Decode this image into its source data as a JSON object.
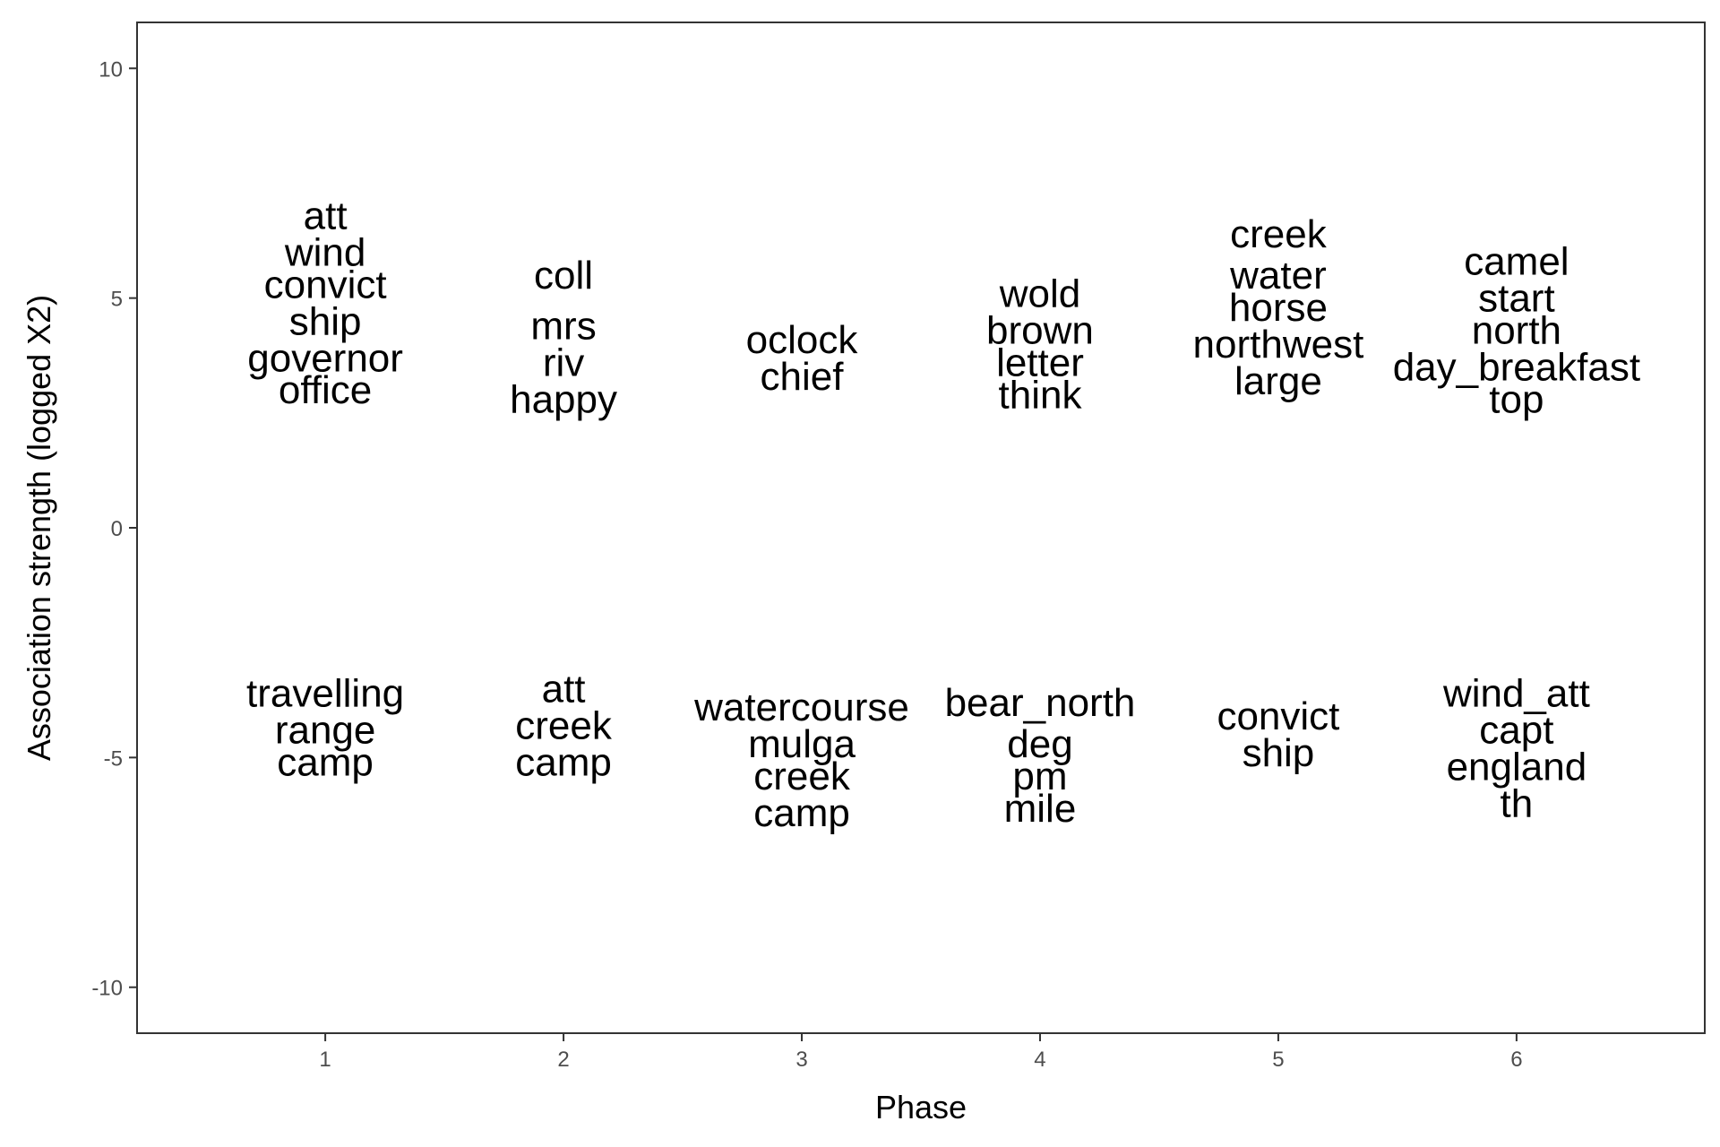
{
  "chart_data": {
    "type": "scatter",
    "xlabel": "Phase",
    "ylabel": "Association strength (logged X2)",
    "xlim": [
      0.21,
      6.79
    ],
    "ylim": [
      -11,
      11
    ],
    "x_ticks": [
      "1",
      "2",
      "3",
      "4",
      "5",
      "6"
    ],
    "y_ticks": [
      "10",
      "5",
      "0",
      "-5",
      "-10"
    ],
    "grid": false,
    "colors": {
      "text": "#000000",
      "tick": "#4d4d4d",
      "panel_border": "#333333",
      "background": "#ffffff"
    },
    "points": [
      {
        "x": 1,
        "y": 6.8,
        "label": "att"
      },
      {
        "x": 1,
        "y": 6.0,
        "label": "wind"
      },
      {
        "x": 1,
        "y": 5.3,
        "label": "convict"
      },
      {
        "x": 1,
        "y": 4.5,
        "label": "ship"
      },
      {
        "x": 1,
        "y": 3.7,
        "label": "governor"
      },
      {
        "x": 1,
        "y": 3.0,
        "label": "office"
      },
      {
        "x": 1,
        "y": -3.6,
        "label": "travelling"
      },
      {
        "x": 1,
        "y": -4.4,
        "label": "range"
      },
      {
        "x": 1,
        "y": -5.1,
        "label": "camp"
      },
      {
        "x": 2,
        "y": 5.5,
        "label": "coll"
      },
      {
        "x": 2,
        "y": 4.4,
        "label": "mrs"
      },
      {
        "x": 2,
        "y": 3.6,
        "label": "riv"
      },
      {
        "x": 2,
        "y": 2.8,
        "label": "happy"
      },
      {
        "x": 2,
        "y": -3.5,
        "label": "att"
      },
      {
        "x": 2,
        "y": -4.3,
        "label": "creek"
      },
      {
        "x": 2,
        "y": -5.1,
        "label": "camp"
      },
      {
        "x": 3,
        "y": 4.1,
        "label": "oclock"
      },
      {
        "x": 3,
        "y": 3.3,
        "label": "chief"
      },
      {
        "x": 3,
        "y": -3.9,
        "label": "watercourse"
      },
      {
        "x": 3,
        "y": -4.7,
        "label": "mulga"
      },
      {
        "x": 3,
        "y": -5.4,
        "label": "creek"
      },
      {
        "x": 3,
        "y": -6.2,
        "label": "camp"
      },
      {
        "x": 4,
        "y": 5.1,
        "label": "wold"
      },
      {
        "x": 4,
        "y": 4.3,
        "label": "brown"
      },
      {
        "x": 4,
        "y": 3.6,
        "label": "letter"
      },
      {
        "x": 4,
        "y": 2.9,
        "label": "think"
      },
      {
        "x": 4,
        "y": -3.8,
        "label": "bear_north"
      },
      {
        "x": 4,
        "y": -4.7,
        "label": "deg"
      },
      {
        "x": 4,
        "y": -5.4,
        "label": "pm"
      },
      {
        "x": 4,
        "y": -6.1,
        "label": "mile"
      },
      {
        "x": 5,
        "y": 6.4,
        "label": "creek"
      },
      {
        "x": 5,
        "y": 5.5,
        "label": "water"
      },
      {
        "x": 5,
        "y": 4.8,
        "label": "horse"
      },
      {
        "x": 5,
        "y": 4.0,
        "label": "northwest"
      },
      {
        "x": 5,
        "y": 3.2,
        "label": "large"
      },
      {
        "x": 5,
        "y": -4.1,
        "label": "convict"
      },
      {
        "x": 5,
        "y": -4.9,
        "label": "ship"
      },
      {
        "x": 6,
        "y": 5.8,
        "label": "camel"
      },
      {
        "x": 6,
        "y": 5.0,
        "label": "start"
      },
      {
        "x": 6,
        "y": 4.3,
        "label": "north"
      },
      {
        "x": 6,
        "y": 3.5,
        "label": "day_breakfast"
      },
      {
        "x": 6,
        "y": 2.8,
        "label": "top"
      },
      {
        "x": 6,
        "y": -3.6,
        "label": "wind_att"
      },
      {
        "x": 6,
        "y": -4.4,
        "label": "capt"
      },
      {
        "x": 6,
        "y": -5.2,
        "label": "england"
      },
      {
        "x": 6,
        "y": -6.0,
        "label": "th"
      }
    ]
  }
}
